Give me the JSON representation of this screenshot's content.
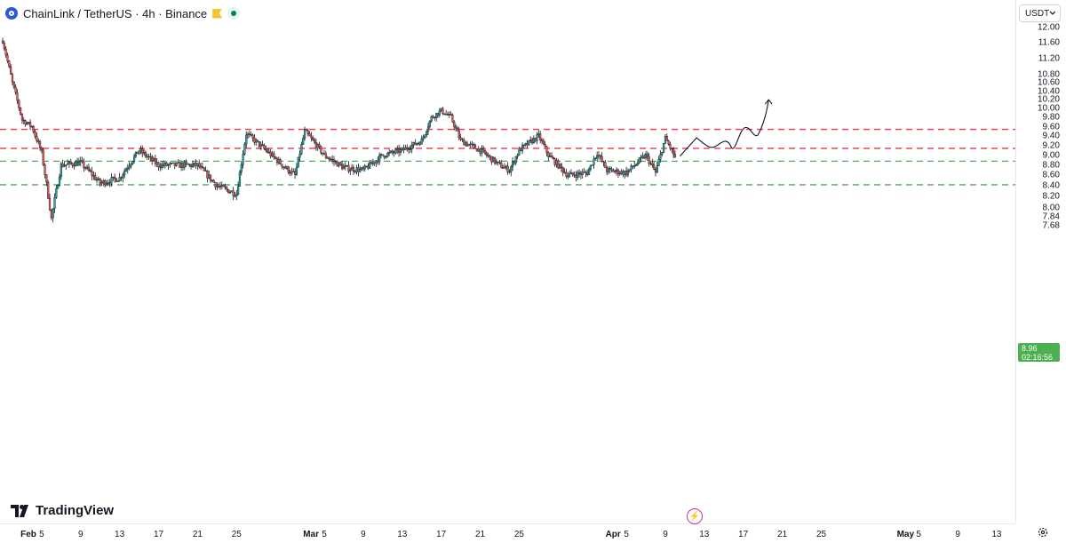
{
  "header": {
    "symbol": "ChainLink / TetherUS",
    "separator": "·",
    "interval": "4h",
    "exchange": "Binance",
    "title": "ChainLink / TetherUS · 4h · Binance"
  },
  "currency_selector": {
    "label": "USDT"
  },
  "price_axis": {
    "ticks": [
      "12.00",
      "11.60",
      "11.20",
      "10.80",
      "10.60",
      "10.40",
      "10.20",
      "10.00",
      "9.80",
      "9.60",
      "9.40",
      "9.20",
      "9.00",
      "8.80",
      "8.60",
      "8.40",
      "8.20",
      "8.00",
      "7.84",
      "7.68"
    ]
  },
  "time_axis": {
    "labels": [
      {
        "text": "Feb",
        "month": true
      },
      {
        "text": "5",
        "month": false
      },
      {
        "text": "9",
        "month": false
      },
      {
        "text": "13",
        "month": false
      },
      {
        "text": "17",
        "month": false
      },
      {
        "text": "21",
        "month": false
      },
      {
        "text": "25",
        "month": false
      },
      {
        "text": "Mar",
        "month": true
      },
      {
        "text": "5",
        "month": false
      },
      {
        "text": "9",
        "month": false
      },
      {
        "text": "13",
        "month": false
      },
      {
        "text": "17",
        "month": false
      },
      {
        "text": "21",
        "month": false
      },
      {
        "text": "25",
        "month": false
      },
      {
        "text": "Apr",
        "month": true
      },
      {
        "text": "5",
        "month": false
      },
      {
        "text": "9",
        "month": false
      },
      {
        "text": "13",
        "month": false
      },
      {
        "text": "17",
        "month": false
      },
      {
        "text": "21",
        "month": false
      },
      {
        "text": "25",
        "month": false
      },
      {
        "text": "May",
        "month": true
      },
      {
        "text": "5",
        "month": false
      },
      {
        "text": "9",
        "month": false
      },
      {
        "text": "13",
        "month": false
      }
    ]
  },
  "current_price": {
    "price": "8.96",
    "countdown": "02:16:56"
  },
  "branding": {
    "name": "TradingView"
  },
  "colors": {
    "up": "#26a69a",
    "down": "#ef5350",
    "candle": "#131722",
    "resistance": "#f23645",
    "support": "#4caf50",
    "accent": "#2a5ada"
  },
  "chart_data": {
    "type": "candlestick",
    "symbol": "ChainLink / TetherUS",
    "interval": "4h",
    "x_range": [
      "Feb 1",
      "Apr 10"
    ],
    "ylim": [
      7.6,
      12.1
    ],
    "y_scale": "log",
    "resistance_levels": [
      9.54,
      9.14
    ],
    "support_levels": [
      8.88,
      8.42
    ],
    "projection": "wavy path rising from about 9.0 to about 10.2",
    "path": [
      {
        "x": "Feb 1",
        "y": 11.65
      },
      {
        "x": "Feb 2",
        "y": 10.6
      },
      {
        "x": "Feb 3",
        "y": 9.75
      },
      {
        "x": "Feb 4",
        "y": 9.6
      },
      {
        "x": "Feb 5",
        "y": 9.05
      },
      {
        "x": "Feb 6",
        "y": 7.8
      },
      {
        "x": "Feb 7",
        "y": 8.8
      },
      {
        "x": "Feb 9",
        "y": 8.85
      },
      {
        "x": "Feb 11",
        "y": 8.45
      },
      {
        "x": "Feb 13",
        "y": 8.55
      },
      {
        "x": "Feb 15",
        "y": 9.1
      },
      {
        "x": "Feb 17",
        "y": 8.8
      },
      {
        "x": "Feb 21",
        "y": 8.8
      },
      {
        "x": "Feb 23",
        "y": 8.4
      },
      {
        "x": "Feb 25",
        "y": 8.25
      },
      {
        "x": "Feb 26",
        "y": 9.45
      },
      {
        "x": "Mar 1",
        "y": 8.75
      },
      {
        "x": "Mar 2",
        "y": 8.6
      },
      {
        "x": "Mar 3",
        "y": 9.5
      },
      {
        "x": "Mar 5",
        "y": 9.0
      },
      {
        "x": "Mar 7",
        "y": 8.75
      },
      {
        "x": "Mar 9",
        "y": 8.7
      },
      {
        "x": "Mar 11",
        "y": 9.0
      },
      {
        "x": "Mar 13",
        "y": 9.1
      },
      {
        "x": "Mar 15",
        "y": 9.3
      },
      {
        "x": "Mar 16",
        "y": 9.8
      },
      {
        "x": "Mar 17",
        "y": 9.95
      },
      {
        "x": "Mar 18",
        "y": 9.8
      },
      {
        "x": "Mar 19",
        "y": 9.3
      },
      {
        "x": "Mar 21",
        "y": 9.1
      },
      {
        "x": "Mar 23",
        "y": 8.8
      },
      {
        "x": "Mar 24",
        "y": 8.7
      },
      {
        "x": "Mar 25",
        "y": 9.1
      },
      {
        "x": "Mar 27",
        "y": 9.4
      },
      {
        "x": "Mar 28",
        "y": 9.0
      },
      {
        "x": "Mar 30",
        "y": 8.6
      },
      {
        "x": "Apr 1",
        "y": 8.65
      },
      {
        "x": "Apr 2",
        "y": 9.05
      },
      {
        "x": "Apr 3",
        "y": 8.7
      },
      {
        "x": "Apr 5",
        "y": 8.65
      },
      {
        "x": "Apr 7",
        "y": 9.0
      },
      {
        "x": "Apr 8",
        "y": 8.65
      },
      {
        "x": "Apr 9",
        "y": 9.35
      },
      {
        "x": "Apr 10",
        "y": 8.96
      }
    ]
  }
}
